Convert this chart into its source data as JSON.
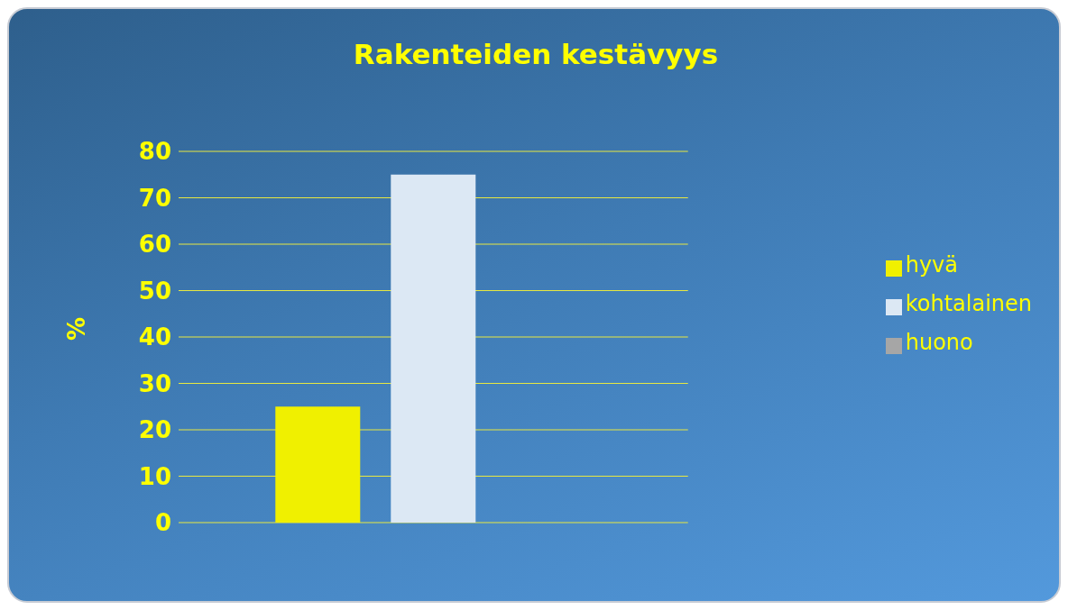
{
  "chart_data": {
    "type": "bar",
    "title": "Rakenteiden kestävyys",
    "ylabel": "%",
    "categories": [
      null
    ],
    "series": [
      {
        "name": "hyvä",
        "color": "#f0f000",
        "values": [
          25
        ]
      },
      {
        "name": "kohtalainen",
        "color": "#dce8f4",
        "values": [
          75
        ]
      },
      {
        "name": "huono",
        "color": "#a6a6a6",
        "values": [
          0
        ]
      }
    ],
    "ylim": [
      0,
      80
    ],
    "yticks": [
      0,
      10,
      20,
      30,
      40,
      50,
      60,
      70,
      80
    ],
    "grid": "y",
    "legend": "right"
  }
}
